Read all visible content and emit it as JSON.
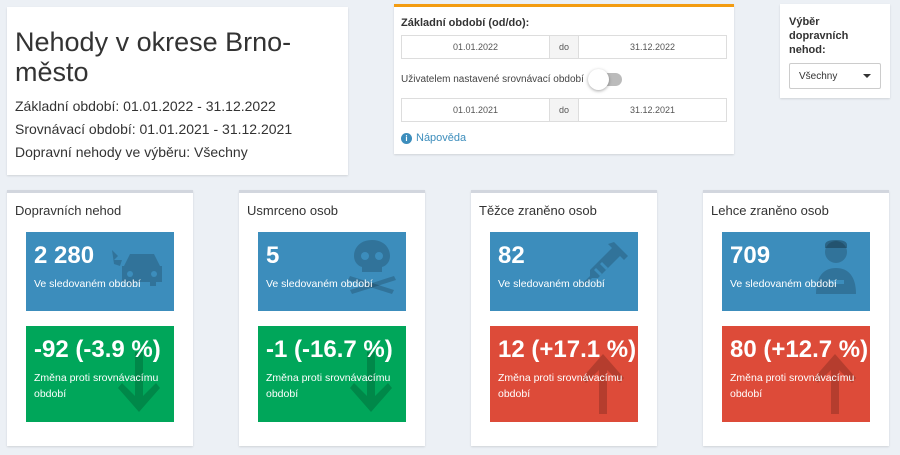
{
  "title": {
    "heading": "Nehody v okrese Brno-město",
    "base_period": "Základní období: 01.01.2022 - 31.12.2022",
    "compare_period": "Srovnávací období: 01.01.2021 - 31.12.2021",
    "selection": "Dopravní nehody ve výběru: Všechny"
  },
  "dates": {
    "base_label": "Základní období (od/do):",
    "base_from": "01.01.2022",
    "base_sep": "do",
    "base_to": "31.12.2022",
    "toggle_label": "Uživatelem nastavené srovnávací období",
    "compare_from": "01.01.2021",
    "compare_sep": "do",
    "compare_to": "31.12.2021",
    "help": "Nápověda"
  },
  "filter": {
    "label": "Výběr dopravních nehod:",
    "value": "Všechny"
  },
  "panels": [
    {
      "title": "Dopravních nehod",
      "value": "2 280",
      "value_sub": "Ve sledovaném období",
      "change": "-92 (-3.9 %)",
      "change_sub": "Změna proti srovnávacímu období",
      "icon": "car-crash-icon",
      "trend": "down"
    },
    {
      "title": "Usmrceno osob",
      "value": "5",
      "value_sub": "Ve sledovaném období",
      "change": "-1 (-16.7 %)",
      "change_sub": "Změna proti srovnávacímu období",
      "icon": "skull-crossbones-icon",
      "trend": "down"
    },
    {
      "title": "Těžce zraněno osob",
      "value": "82",
      "value_sub": "Ve sledovaném období",
      "change": "12 (+17.1 %)",
      "change_sub": "Změna proti srovnávacímu období",
      "icon": "syringe-icon",
      "trend": "up"
    },
    {
      "title": "Lehce zraněno osob",
      "value": "709",
      "value_sub": "Ve sledovaném období",
      "change": "80 (+12.7 %)",
      "change_sub": "Změna proti srovnávacímu období",
      "icon": "user-injured-icon",
      "trend": "up"
    }
  ],
  "colors": {
    "blue": "#3c8dbc",
    "green": "#00a65a",
    "red": "#dd4b39",
    "accent": "#f39c12"
  }
}
